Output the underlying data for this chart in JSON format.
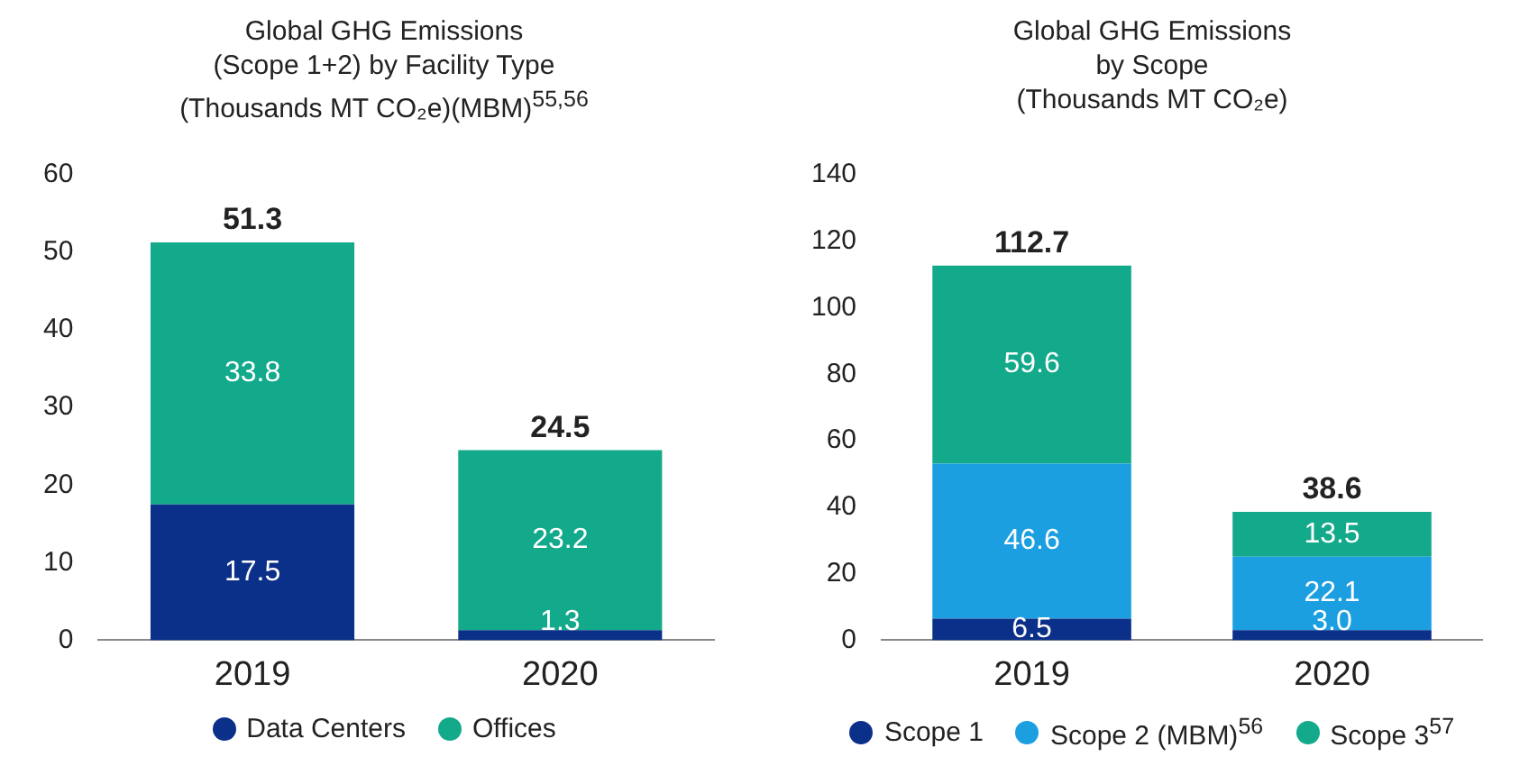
{
  "chart_data": [
    {
      "type": "bar",
      "title": "Global GHG Emissions\n(Scope 1+2) by Facility Type\n(Thousands MT CO₂e)(MBM)$^{55,56}$",
      "stacked": true,
      "categories": [
        "2019",
        "2020"
      ],
      "series": [
        {
          "name": "Data Centers",
          "color": "#0b3089",
          "values": [
            17.5,
            1.3
          ],
          "value_labels": [
            "17.5",
            "1.3"
          ]
        },
        {
          "name": "Offices",
          "color": "#13a98b",
          "values": [
            33.8,
            23.2
          ],
          "value_labels": [
            "33.8",
            "23.2"
          ]
        }
      ],
      "ylim": [
        0,
        60
      ],
      "yticks": [
        0,
        10,
        20,
        30,
        40,
        50,
        60
      ],
      "grid": false,
      "legend": "bottom",
      "totals": [
        "51.3",
        "24.5"
      ]
    },
    {
      "type": "bar",
      "title": "Global GHG Emissions\nby Scope\n(Thousands MT CO₂e)",
      "stacked": true,
      "categories": [
        "2019",
        "2020"
      ],
      "series": [
        {
          "name": "Scope 1",
          "color": "#0b3089",
          "values": [
            6.5,
            3.0
          ],
          "value_labels": [
            "6.5",
            "3.0"
          ]
        },
        {
          "name": "Scope 2 (MBM)$^{56}$",
          "color": "#1b9fe1",
          "values": [
            46.6,
            22.1
          ],
          "value_labels": [
            "46.6",
            "22.1"
          ]
        },
        {
          "name": "Scope 3$^{57}$",
          "color": "#13a98b",
          "values": [
            59.6,
            13.5
          ],
          "value_labels": [
            "59.6",
            "13.5"
          ]
        }
      ],
      "ylim": [
        0,
        140
      ],
      "yticks": [
        0,
        20,
        40,
        60,
        80,
        100,
        120,
        140
      ],
      "grid": false,
      "legend": "bottom",
      "totals": [
        "112.7",
        "38.6"
      ]
    }
  ]
}
